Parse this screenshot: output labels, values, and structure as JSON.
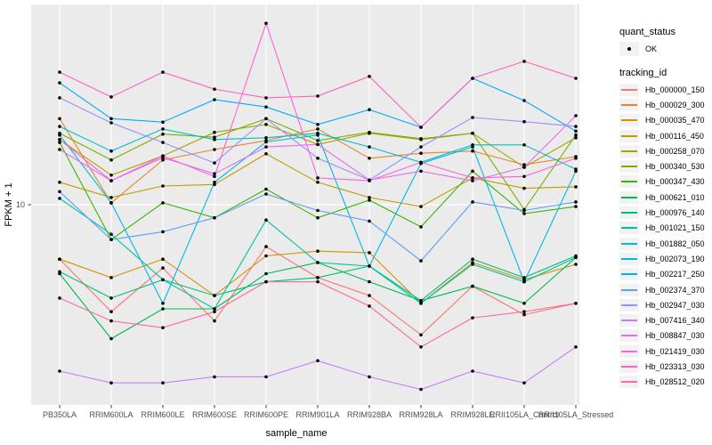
{
  "figure": {
    "panel_bg": "#EBEBEB",
    "grid_color": "#FFFFFF",
    "tick_color": "#333333",
    "tick_label_color": "#4D4D4D",
    "point_color": "#000000"
  },
  "axes": {
    "x_label": "sample_name",
    "y_label": "FPKM + 1",
    "y_tick_label": "10"
  },
  "legend": {
    "quant_status": {
      "title": "quant_status",
      "items": [
        {
          "label": "OK"
        }
      ]
    },
    "tracking_id": {
      "title": "tracking_id"
    }
  },
  "chart_data": {
    "type": "line",
    "yscale": "log10",
    "xlabel": "sample_name",
    "ylabel": "FPKM + 1",
    "y_ticks": [
      10
    ],
    "ylim_approx": [
      1.2,
      84
    ],
    "grid": "major-only",
    "legend_position": "right",
    "marker": "small black point (quant_status OK)",
    "x": [
      "PB350LA",
      "RRIM600LA",
      "RRIM600LE",
      "RRIM600SE",
      "RRIM600PE",
      "RRIM901LA",
      "RRIM928BA",
      "RRIM928LA",
      "RRIM928LE",
      "RRII105LA_Control",
      "RRII105LA_Stressed"
    ],
    "series": [
      {
        "name": "Hb_000000_150",
        "color": "#F8766D",
        "values": [
          5.6,
          3.2,
          5.1,
          2.9,
          6.4,
          4.6,
          3.8,
          2.5,
          4.2,
          3.1,
          3.5
        ]
      },
      {
        "name": "Hb_000029_300",
        "color": "#EA8331",
        "values": [
          25.0,
          10.2,
          16.1,
          18.0,
          19.8,
          22.4,
          16.4,
          17.3,
          17.7,
          15.3,
          16.7
        ]
      },
      {
        "name": "Hb_000035_470",
        "color": "#D89000",
        "values": [
          5.6,
          4.6,
          5.6,
          3.8,
          5.8,
          6.1,
          6.0,
          3.5,
          5.4,
          4.5,
          5.3
        ]
      },
      {
        "name": "Hb_000116_450",
        "color": "#C09B00",
        "values": [
          12.7,
          10.8,
          12.2,
          12.4,
          17.2,
          12.7,
          10.8,
          9.8,
          13.3,
          11.9,
          12.1
        ]
      },
      {
        "name": "Hb_000258_070",
        "color": "#A3A500",
        "values": [
          20.0,
          13.7,
          16.8,
          21.6,
          23.5,
          19.0,
          21.4,
          20.0,
          21.4,
          14.9,
          20.4
        ]
      },
      {
        "name": "Hb_000340_530",
        "color": "#7CAE00",
        "values": [
          21.4,
          16.1,
          21.2,
          20.5,
          25.0,
          19.8,
          21.6,
          20.2,
          21.4,
          9.5,
          21.0
        ]
      },
      {
        "name": "Hb_000347_430",
        "color": "#39B600",
        "values": [
          19.4,
          6.9,
          10.2,
          8.7,
          11.8,
          8.7,
          10.5,
          7.9,
          14.3,
          9.1,
          9.8
        ]
      },
      {
        "name": "Hb_000621_010",
        "color": "#00BB4E",
        "values": [
          4.8,
          2.4,
          3.3,
          3.3,
          4.8,
          5.4,
          4.4,
          3.6,
          4.2,
          3.5,
          5.7
        ]
      },
      {
        "name": "Hb_000976_140",
        "color": "#00BF7D",
        "values": [
          4.9,
          3.7,
          4.5,
          3.8,
          4.4,
          4.6,
          5.2,
          3.6,
          5.6,
          4.6,
          5.8
        ]
      },
      {
        "name": "Hb_001021_150",
        "color": "#00C1A3",
        "values": [
          10.7,
          7.3,
          4.5,
          3.3,
          8.5,
          5.4,
          5.2,
          3.5,
          5.3,
          4.4,
          5.7
        ]
      },
      {
        "name": "Hb_001882_050",
        "color": "#00BFC4",
        "values": [
          23.0,
          17.7,
          22.4,
          20.0,
          20.4,
          21.4,
          18.5,
          15.7,
          18.9,
          18.9,
          14.6
        ]
      },
      {
        "name": "Hb_002073_190",
        "color": "#00B8E7",
        "values": [
          21.0,
          10.2,
          3.5,
          12.7,
          19.5,
          21.0,
          5.2,
          15.5,
          18.5,
          4.4,
          14.3
        ]
      },
      {
        "name": "Hb_002217_250",
        "color": "#00ACFC",
        "values": [
          36.6,
          25.0,
          24.1,
          30.6,
          28.3,
          23.5,
          27.5,
          22.8,
          38.4,
          30.3,
          21.9
        ]
      },
      {
        "name": "Hb_002374_370",
        "color": "#619CFF",
        "values": [
          11.5,
          6.9,
          7.5,
          8.7,
          11.2,
          9.4,
          8.4,
          5.5,
          10.3,
          9.4,
          10.3
        ]
      },
      {
        "name": "Hb_002947_030",
        "color": "#9590FF",
        "values": [
          31.2,
          23.9,
          19.4,
          15.6,
          25.0,
          16.4,
          13.0,
          18.5,
          25.3,
          24.2,
          23.0
        ]
      },
      {
        "name": "Hb_007416_340",
        "color": "#C77CFF",
        "values": [
          1.7,
          1.5,
          1.5,
          1.6,
          1.6,
          1.9,
          1.6,
          1.4,
          1.7,
          1.5,
          2.2
        ]
      },
      {
        "name": "Hb_008847_030",
        "color": "#E76BF3",
        "values": [
          18.0,
          12.9,
          16.5,
          13.9,
          18.5,
          19.0,
          13.0,
          14.3,
          12.9,
          14.9,
          25.8
        ]
      },
      {
        "name": "Hb_021419_030",
        "color": "#FA62DB",
        "values": [
          20.0,
          12.9,
          16.8,
          13.5,
          69.0,
          13.3,
          12.9,
          15.7,
          13.3,
          13.5,
          16.4
        ]
      },
      {
        "name": "Hb_023313_030",
        "color": "#FF61C3",
        "values": [
          41.0,
          31.5,
          41.0,
          34.2,
          31.2,
          31.8,
          39.2,
          22.8,
          38.4,
          46.0,
          38.4
        ]
      },
      {
        "name": "Hb_028512_020",
        "color": "#FF6A98",
        "values": [
          3.7,
          2.9,
          2.7,
          3.2,
          4.4,
          4.4,
          3.4,
          2.2,
          3.0,
          3.2,
          3.5
        ]
      }
    ]
  }
}
